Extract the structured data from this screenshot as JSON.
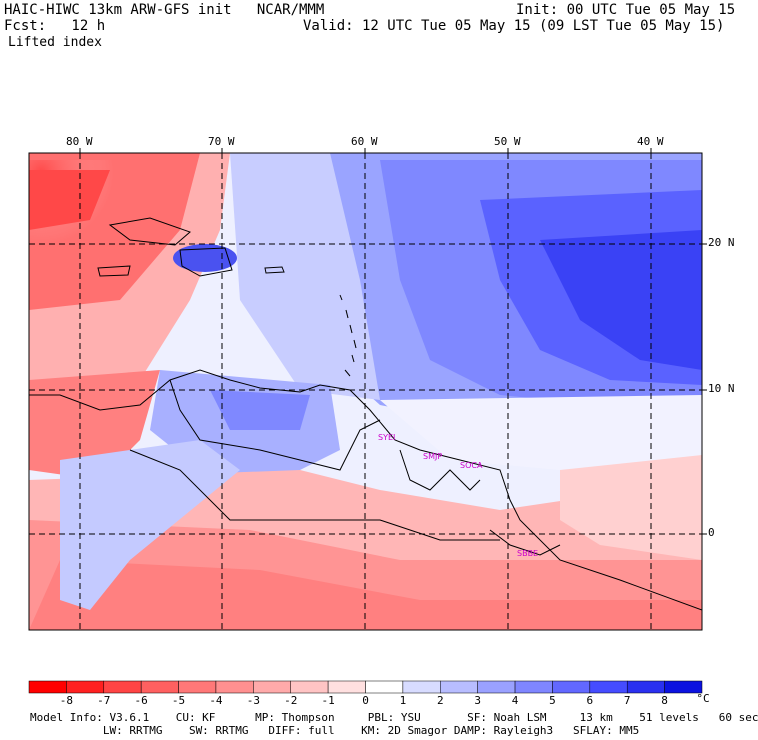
{
  "header": {
    "title_left": "HAIC-HIWC 13km ARW-GFS init   NCAR/MMM",
    "init": "Init: 00 UTC Tue 05 May 15",
    "fcst": "Fcst:   12 h",
    "valid": "Valid: 12 UTC Tue 05 May 15 (09 LST Tue 05 May 15)",
    "field": "Lifted index"
  },
  "map": {
    "lon_labels": [
      "80 W",
      "70 W",
      "60 W",
      "50 W",
      "40 W"
    ],
    "lat_labels": [
      "20 N",
      "10 N",
      "0"
    ],
    "stations": [
      "SYEI",
      "SMJP",
      "SOCA",
      "SBBE"
    ]
  },
  "colorbar": {
    "ticks": [
      "-8",
      "-7",
      "-6",
      "-5",
      "-4",
      "-3",
      "-2",
      "-1",
      "0",
      "1",
      "2",
      "3",
      "4",
      "5",
      "6",
      "7",
      "8"
    ],
    "unit": "°C",
    "colors": [
      "#ff0000",
      "#ff2020",
      "#ff4444",
      "#ff6060",
      "#ff7878",
      "#ff9090",
      "#ffaaaa",
      "#ffc4c4",
      "#ffe0e0",
      "#ffffff",
      "#d8dcff",
      "#b8bdff",
      "#9aa1ff",
      "#7f86ff",
      "#6268ff",
      "#454cff",
      "#2a30f0",
      "#0c12e0"
    ]
  },
  "footer": {
    "line1": "Model Info: V3.6.1    CU: KF      MP: Thompson     PBL: YSU       SF: Noah LSM     13 km    51 levels   60 sec",
    "line2": "           LW: RRTMG    SW: RRTMG   DIFF: full    KM: 2D Smagor DAMP: Rayleigh3   SFLAY: MM5"
  }
}
